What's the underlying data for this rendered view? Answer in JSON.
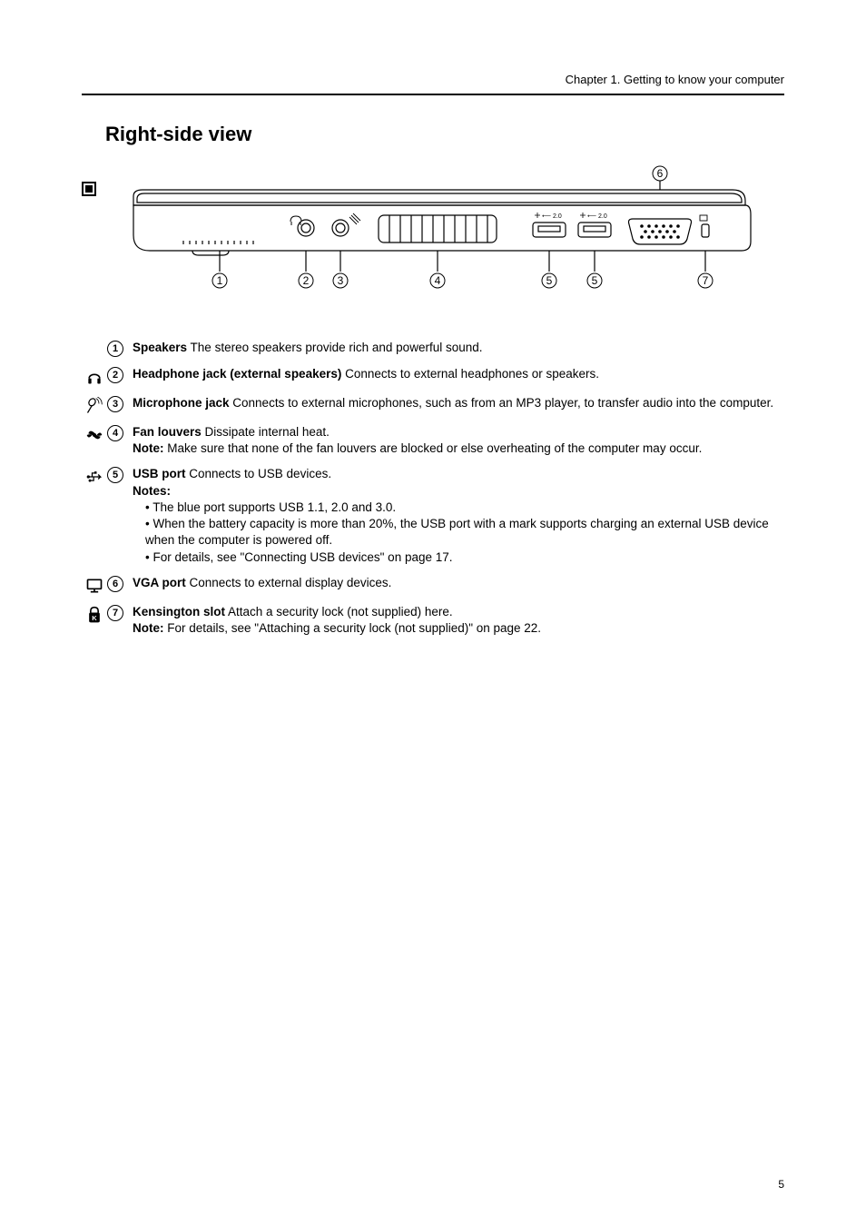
{
  "page": {
    "chapter_header": "Chapter 1. Getting to know your computer",
    "section_title": "Right-side view",
    "page_number": "5"
  },
  "diagram": {
    "stroke": "#000000",
    "fill": "#ffffff",
    "callout_labels": [
      "1",
      "2",
      "3",
      "4",
      "5",
      "5",
      "6",
      "7"
    ]
  },
  "features": [
    {
      "num": "1",
      "icon": null,
      "title": "Speakers",
      "body": "The stereo speakers provide rich and powerful sound."
    },
    {
      "num": "2",
      "icon": "headphone",
      "title": "Headphone jack (external speakers)",
      "body": "Connects to external headphones or speakers."
    },
    {
      "num": "3",
      "icon": "mic",
      "title": "Microphone jack",
      "body": "Connects to external microphones, such as from an MP3 player, to transfer audio into the computer."
    },
    {
      "num": "4",
      "icon": "fan",
      "title": "Fan louvers",
      "body": "Dissipate internal heat.\nNote: Make sure that none of the fan louvers are blocked or else overheating of the computer may occur."
    },
    {
      "num": "5",
      "icon": "usb",
      "title": "USB port",
      "body": "Connects to USB devices.\nNotes:\n• The blue port supports USB 1.1, 2.0 and 3.0.\n• When the battery capacity is more than 20%, the USB port with a mark supports charging an external USB device when the computer is powered off.\n• For details, see \"Connecting USB devices\" on page 17."
    },
    {
      "num": "6",
      "icon": "monitor",
      "title": "VGA port",
      "body": "Connects to external display devices."
    },
    {
      "num": "7",
      "icon": "lock",
      "title": "Kensington slot",
      "body": "Attach a security lock (not supplied) here.\nNote: For details, see \"Attaching a security lock (not supplied)\" on page 22."
    }
  ]
}
